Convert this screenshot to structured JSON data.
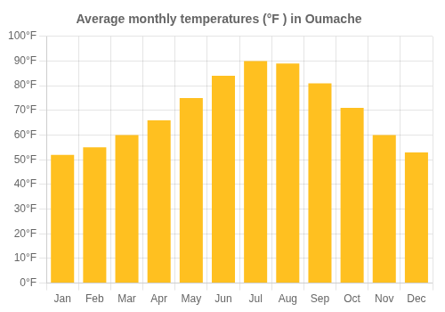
{
  "chart_data": {
    "type": "bar",
    "title": "Average monthly temperatures (°F ) in Oumache",
    "categories": [
      "Jan",
      "Feb",
      "Mar",
      "Apr",
      "May",
      "Jun",
      "Jul",
      "Aug",
      "Sep",
      "Oct",
      "Nov",
      "Dec"
    ],
    "values": [
      52,
      55,
      60,
      66,
      75,
      84,
      90,
      89,
      81,
      71,
      60,
      53
    ],
    "color": "#FFC020",
    "ylim": [
      0,
      100
    ],
    "yticks": [
      {
        "value": 0,
        "label": "0°F"
      },
      {
        "value": 10,
        "label": "10°F"
      },
      {
        "value": 20,
        "label": "20°F"
      },
      {
        "value": 30,
        "label": "30°F"
      },
      {
        "value": 40,
        "label": "40°F"
      },
      {
        "value": 50,
        "label": "50°F"
      },
      {
        "value": 60,
        "label": "60°F"
      },
      {
        "value": 70,
        "label": "70°F"
      },
      {
        "value": 80,
        "label": "80°F"
      },
      {
        "value": 90,
        "label": "90°F"
      },
      {
        "value": 100,
        "label": "100°F"
      }
    ],
    "grid": true
  }
}
